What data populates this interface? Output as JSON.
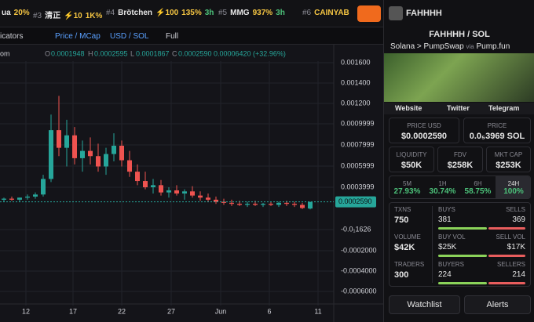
{
  "topbar": {
    "trending": [
      {
        "name": "ua",
        "change": "20%"
      },
      {
        "rank": "#3",
        "name": "清正",
        "boost": "⚡10",
        "change": "1K%"
      },
      {
        "rank": "#4",
        "name": "Brötchen",
        "boost": "⚡100",
        "change": "135%",
        "age": "3h"
      },
      {
        "rank": "#5",
        "name": "MMG",
        "change": "937%",
        "age": "3h"
      },
      {
        "rank": "#6",
        "name": "CAINYAB"
      }
    ]
  },
  "toolbar": {
    "indicators": "icators",
    "price_mcap": "Price / MCap",
    "currency": "USD / SOL",
    "full": "Full"
  },
  "chart": {
    "legend": {
      "symbol": "om",
      "open_label": "O",
      "open": "0.0001948",
      "high_label": "H",
      "high": "0.0002595",
      "low_label": "L",
      "low": "0.0001867",
      "close_label": "C",
      "close": "0.0002590",
      "change": "0.00006420 (+32.96%)"
    },
    "price_labels": [
      "0.001600",
      "0.001400",
      "0.001200",
      "0.0009999",
      "0.0007999",
      "0.0005999",
      "0.0003999",
      "-0.0₁1626",
      "-0.0002000",
      "-0.0004000",
      "-0.0006000"
    ],
    "last_price": "0.0002590",
    "x_labels": [
      "12",
      "17",
      "22",
      "27",
      "Jun",
      "6",
      "11"
    ],
    "candles": [
      [
        0.00028,
        0.0003,
        0.00026,
        0.00029
      ],
      [
        0.00029,
        0.00031,
        0.00027,
        0.00028
      ],
      [
        0.00028,
        0.0003,
        0.00026,
        0.0003
      ],
      [
        0.0003,
        0.00033,
        0.00028,
        0.00031
      ],
      [
        0.00031,
        0.00035,
        0.00029,
        0.00033
      ],
      [
        0.00033,
        0.00052,
        0.00031,
        0.00048
      ],
      [
        0.00048,
        0.0011,
        0.00045,
        0.00095
      ],
      [
        0.00095,
        0.00128,
        0.0007,
        0.00078
      ],
      [
        0.00078,
        0.00105,
        0.0006,
        0.0009
      ],
      [
        0.0009,
        0.00098,
        0.00062,
        0.00068
      ],
      [
        0.00068,
        0.00085,
        0.00055,
        0.00075
      ],
      [
        0.00075,
        0.00088,
        0.00062,
        0.0007
      ],
      [
        0.0007,
        0.00082,
        0.00055,
        0.0006
      ],
      [
        0.0006,
        0.00078,
        0.00052,
        0.00072
      ],
      [
        0.00072,
        0.00092,
        0.00065,
        0.0008
      ],
      [
        0.0008,
        0.00085,
        0.0006,
        0.00066
      ],
      [
        0.00066,
        0.00075,
        0.0005,
        0.00055
      ],
      [
        0.00055,
        0.00062,
        0.00042,
        0.00046
      ],
      [
        0.00046,
        0.00055,
        0.00038,
        0.0004
      ],
      [
        0.0004,
        0.00048,
        0.00034,
        0.00042
      ],
      [
        0.00042,
        0.00047,
        0.00032,
        0.00035
      ],
      [
        0.00035,
        0.0004,
        0.0003,
        0.00037
      ],
      [
        0.00037,
        0.00042,
        0.00032,
        0.00034
      ],
      [
        0.00034,
        0.00038,
        0.00028,
        0.00036
      ],
      [
        0.00036,
        0.00041,
        0.0003,
        0.00032
      ],
      [
        0.00032,
        0.00036,
        0.00027,
        0.0003
      ],
      [
        0.0003,
        0.00034,
        0.00026,
        0.00028
      ],
      [
        0.00028,
        0.00031,
        0.00024,
        0.00026
      ],
      [
        0.00026,
        0.00029,
        0.00023,
        0.00025
      ],
      [
        0.00025,
        0.00028,
        0.00022,
        0.00024
      ],
      [
        0.00024,
        0.00027,
        0.00022,
        0.00023
      ],
      [
        0.00023,
        0.00026,
        0.00021,
        0.00024
      ],
      [
        0.00024,
        0.00027,
        0.00022,
        0.00023
      ],
      [
        0.00023,
        0.00025,
        0.00021,
        0.00024
      ],
      [
        0.00024,
        0.00026,
        0.00022,
        0.00023
      ],
      [
        0.00023,
        0.00026,
        0.00021,
        0.00025
      ],
      [
        0.00025,
        0.00027,
        0.00022,
        0.00024
      ],
      [
        0.00024,
        0.00026,
        0.00021,
        0.00023
      ],
      [
        0.00023,
        0.00025,
        0.00019,
        0.0002
      ],
      [
        0.0001948,
        0.0002595,
        0.0001867,
        0.000259
      ]
    ]
  },
  "pair": {
    "name": "FAHHHH",
    "pair": "FAHHHH / SOL",
    "chain": "Solana",
    "dex": "PumpSwap",
    "via": "via",
    "launchpad": "Pump.fun",
    "links": [
      "Website",
      "Twitter",
      "Telegram"
    ],
    "stats": [
      {
        "label": "PRICE USD",
        "value": "$0.0002590"
      },
      {
        "label": "PRICE",
        "value": "0.0₅3969 SOL"
      },
      {
        "label": "LIQUIDITY",
        "value": "$50K"
      },
      {
        "label": "FDV",
        "value": "$258K"
      },
      {
        "label": "MKT CAP",
        "value": "$253K"
      }
    ],
    "timeframes": [
      {
        "label": "5M",
        "change": "27.93%"
      },
      {
        "label": "1H",
        "change": "30.74%"
      },
      {
        "label": "6H",
        "change": "58.75%"
      },
      {
        "label": "24H",
        "change": "100%"
      }
    ],
    "activity": [
      {
        "label": "TXNS",
        "value": "750",
        "buy_label": "BUYS",
        "buy": "381",
        "sell_label": "SELLS",
        "sell": "369"
      },
      {
        "label": "VOLUME",
        "value": "$42K",
        "buy_label": "BUY VOL",
        "buy": "$25K",
        "sell_label": "SELL VOL",
        "sell": "$17K"
      },
      {
        "label": "TRADERS",
        "value": "300",
        "buy_label": "BUYERS",
        "buy": "224",
        "sell_label": "SELLERS",
        "sell": "214"
      }
    ],
    "actions": [
      "Watchlist",
      "Alerts"
    ]
  }
}
